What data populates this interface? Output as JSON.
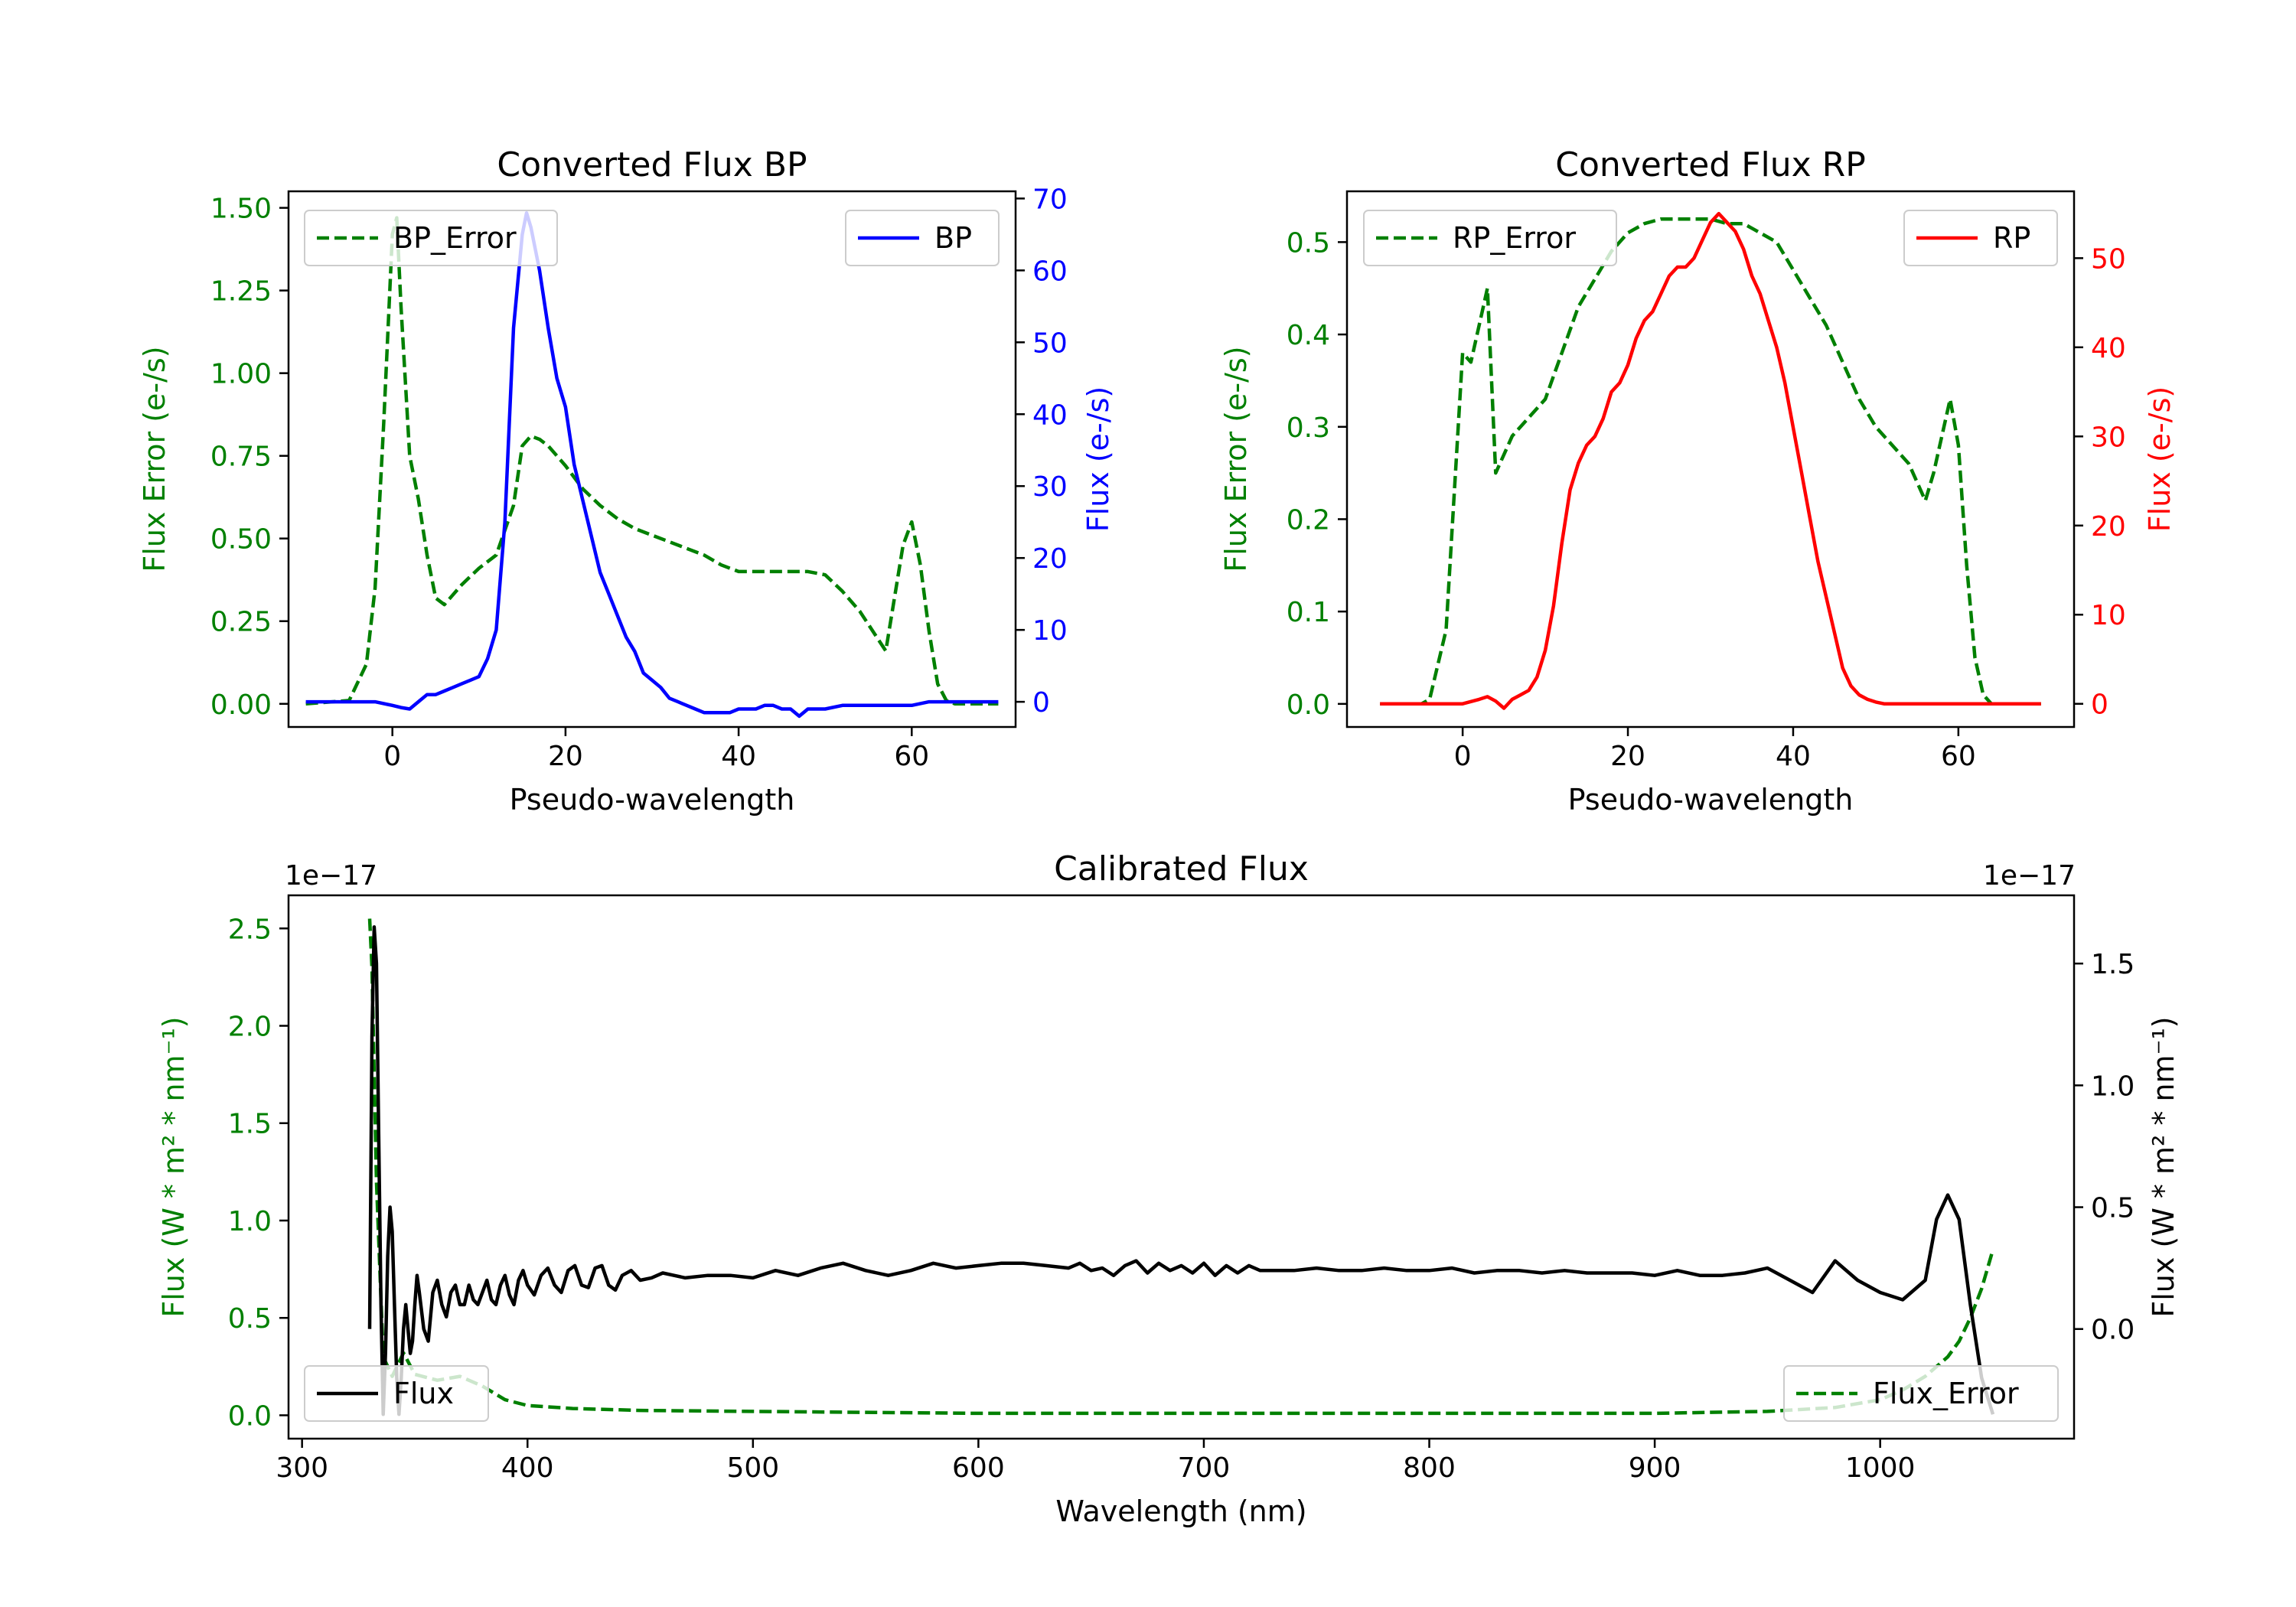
{
  "colors": {
    "error": "#008000",
    "bp": "#0000ff",
    "rp": "#ff0000",
    "flux": "#000000"
  },
  "chart_data": [
    {
      "id": "bp",
      "type": "line",
      "title": "Converted Flux BP",
      "xlabel": "Pseudo-wavelength",
      "ylabel_left": "Flux Error (e-/s)",
      "ylabel_right": "Flux (e-/s)",
      "xlim": [
        -12,
        72
      ],
      "ylim_left": [
        -0.07,
        1.55
      ],
      "ylim_right": [
        -3.5,
        71
      ],
      "xticks": [
        0,
        20,
        40,
        60
      ],
      "xtick_labels": [
        "0",
        "20",
        "40",
        "60"
      ],
      "yticks_left": [
        0,
        0.25,
        0.5,
        0.75,
        1.0,
        1.25,
        1.5
      ],
      "ytick_labels_left": [
        "0.00",
        "0.25",
        "0.50",
        "0.75",
        "1.00",
        "1.25",
        "1.50"
      ],
      "yticks_right": [
        0,
        10,
        20,
        30,
        40,
        50,
        60,
        70
      ],
      "ytick_labels_right": [
        "0",
        "10",
        "20",
        "30",
        "40",
        "50",
        "60",
        "70"
      ],
      "legend_left": {
        "label": "BP_Error",
        "position": "upper left"
      },
      "legend_right": {
        "label": "BP",
        "position": "upper right"
      },
      "series": [
        {
          "name": "BP_Error",
          "axis": "left",
          "color": "#008000",
          "style": "dashed",
          "x": [
            -10,
            -5,
            -3,
            -2,
            -1,
            0,
            0.5,
            1,
            2,
            3,
            4,
            5,
            6,
            7,
            8,
            10,
            12,
            14,
            15,
            16,
            17,
            18,
            20,
            22,
            24,
            26,
            28,
            30,
            32,
            34,
            36,
            38,
            40,
            42,
            44,
            46,
            48,
            50,
            52,
            54,
            56,
            57,
            58,
            59,
            60,
            61,
            62,
            63,
            64,
            65,
            66,
            70
          ],
          "y": [
            0,
            0.01,
            0.12,
            0.35,
            0.85,
            1.42,
            1.47,
            1.2,
            0.75,
            0.62,
            0.45,
            0.32,
            0.3,
            0.33,
            0.36,
            0.41,
            0.45,
            0.6,
            0.78,
            0.81,
            0.8,
            0.78,
            0.72,
            0.65,
            0.6,
            0.56,
            0.53,
            0.51,
            0.49,
            0.47,
            0.45,
            0.42,
            0.4,
            0.4,
            0.4,
            0.4,
            0.4,
            0.39,
            0.34,
            0.28,
            0.2,
            0.16,
            0.32,
            0.48,
            0.55,
            0.42,
            0.22,
            0.06,
            0.01,
            0,
            0,
            0
          ]
        },
        {
          "name": "BP",
          "axis": "right",
          "color": "#0000ff",
          "style": "solid",
          "x": [
            -10,
            -5,
            -2,
            0,
            1,
            2,
            3,
            4,
            5,
            6,
            7,
            8,
            9,
            10,
            11,
            12,
            13,
            14,
            15,
            15.5,
            16,
            17,
            18,
            19,
            20,
            21,
            22,
            23,
            24,
            25,
            26,
            27,
            28,
            29,
            30,
            31,
            32,
            33,
            34,
            35,
            36,
            37,
            38,
            39,
            40,
            41,
            42,
            43,
            44,
            45,
            46,
            47,
            48,
            49,
            50,
            52,
            54,
            56,
            58,
            60,
            62,
            64,
            66,
            68,
            70
          ],
          "y": [
            0,
            0,
            0,
            -0.5,
            -0.8,
            -1,
            0,
            1,
            1,
            1.5,
            2,
            2.5,
            3,
            3.5,
            6,
            10,
            25,
            52,
            65,
            68,
            66,
            60,
            52,
            45,
            41,
            33,
            28,
            23,
            18,
            15,
            12,
            9,
            7,
            4,
            3,
            2,
            0.5,
            0,
            -0.5,
            -1,
            -1.5,
            -1.5,
            -1.5,
            -1.5,
            -1,
            -1,
            -1,
            -0.5,
            -0.5,
            -1,
            -1,
            -2,
            -1,
            -1,
            -1,
            -0.5,
            -0.5,
            -0.5,
            -0.5,
            -0.5,
            0,
            0,
            0,
            0,
            0
          ]
        }
      ]
    },
    {
      "id": "rp",
      "type": "line",
      "title": "Converted Flux RP",
      "xlabel": "Pseudo-wavelength",
      "ylabel_left": "Flux Error (e-/s)",
      "ylabel_right": "Flux (e-/s)",
      "xlim": [
        -14,
        74
      ],
      "ylim_left": [
        -0.025,
        0.555
      ],
      "ylim_right": [
        -2.6,
        57.5
      ],
      "xticks": [
        0,
        20,
        40,
        60
      ],
      "xtick_labels": [
        "0",
        "20",
        "40",
        "60"
      ],
      "yticks_left": [
        0,
        0.1,
        0.2,
        0.3,
        0.4,
        0.5
      ],
      "ytick_labels_left": [
        "0.0",
        "0.1",
        "0.2",
        "0.3",
        "0.4",
        "0.5"
      ],
      "yticks_right": [
        0,
        10,
        20,
        30,
        40,
        50
      ],
      "ytick_labels_right": [
        "0",
        "10",
        "20",
        "30",
        "40",
        "50"
      ],
      "legend_left": {
        "label": "RP_Error",
        "position": "upper left"
      },
      "legend_right": {
        "label": "RP",
        "position": "upper right"
      },
      "series": [
        {
          "name": "RP_Error",
          "axis": "left",
          "color": "#008000",
          "style": "dashed",
          "x": [
            -10,
            -5,
            -4,
            -2,
            -1,
            0,
            1,
            2,
            3,
            4,
            5,
            6,
            8,
            10,
            12,
            14,
            16,
            18,
            20,
            22,
            24,
            26,
            28,
            30,
            32,
            34,
            36,
            38,
            40,
            42,
            44,
            46,
            48,
            50,
            52,
            54,
            56,
            57,
            58,
            59,
            60,
            61,
            62,
            63,
            64,
            66,
            70
          ],
          "y": [
            0,
            0,
            0.005,
            0.08,
            0.23,
            0.38,
            0.37,
            0.41,
            0.45,
            0.25,
            0.27,
            0.29,
            0.31,
            0.33,
            0.38,
            0.43,
            0.46,
            0.49,
            0.51,
            0.52,
            0.525,
            0.525,
            0.525,
            0.525,
            0.52,
            0.52,
            0.51,
            0.5,
            0.47,
            0.44,
            0.41,
            0.37,
            0.33,
            0.3,
            0.28,
            0.26,
            0.22,
            0.25,
            0.29,
            0.33,
            0.28,
            0.15,
            0.05,
            0.01,
            0,
            0,
            0
          ]
        },
        {
          "name": "RP",
          "axis": "right",
          "color": "#ff0000",
          "style": "solid",
          "x": [
            -10,
            -5,
            0,
            2,
            3,
            4,
            5,
            6,
            7,
            8,
            9,
            10,
            11,
            12,
            13,
            14,
            15,
            16,
            17,
            18,
            19,
            20,
            21,
            22,
            23,
            24,
            25,
            26,
            27,
            28,
            29,
            30,
            31,
            32,
            33,
            34,
            35,
            36,
            37,
            38,
            39,
            40,
            41,
            42,
            43,
            44,
            45,
            46,
            47,
            48,
            49,
            50,
            51,
            52,
            54,
            56,
            58,
            60,
            62,
            64,
            66,
            70
          ],
          "y": [
            0,
            0,
            0,
            0.5,
            0.8,
            0.3,
            -0.5,
            0.5,
            1,
            1.5,
            3,
            6,
            11,
            18,
            24,
            27,
            29,
            30,
            32,
            35,
            36,
            38,
            41,
            43,
            44,
            46,
            48,
            49,
            49,
            50,
            52,
            54,
            55,
            54,
            53,
            51,
            48,
            46,
            43,
            40,
            36,
            31,
            26,
            21,
            16,
            12,
            8,
            4,
            2,
            1,
            0.5,
            0.2,
            0,
            0,
            0,
            0,
            0,
            0,
            0,
            0,
            0,
            0
          ]
        }
      ]
    },
    {
      "id": "calibrated",
      "type": "line",
      "title": "Calibrated Flux",
      "xlabel": "Wavelength (nm)",
      "ylabel_left": "Flux (W * m² * nm⁻¹)",
      "ylabel_right": "Flux (W * m² * nm⁻¹)",
      "offset_left": "1e−17",
      "offset_right": "1e−17",
      "xlim": [
        294,
        1086
      ],
      "ylim_left": [
        -0.12,
        2.67
      ],
      "ylim_right": [
        -0.45,
        1.78
      ],
      "xticks": [
        300,
        400,
        500,
        600,
        700,
        800,
        900,
        1000
      ],
      "xtick_labels": [
        "300",
        "400",
        "500",
        "600",
        "700",
        "800",
        "900",
        "1000"
      ],
      "yticks_left": [
        0,
        0.5,
        1.0,
        1.5,
        2.0,
        2.5
      ],
      "ytick_labels_left": [
        "0.0",
        "0.5",
        "1.0",
        "1.5",
        "2.0",
        "2.5"
      ],
      "yticks_right": [
        0,
        0.5,
        1.0,
        1.5
      ],
      "ytick_labels_right": [
        "0.0",
        "0.5",
        "1.0",
        "1.5"
      ],
      "legend_left": {
        "label": "Flux",
        "position": "lower left"
      },
      "legend_right": {
        "label": "Flux_Error",
        "position": "lower right"
      },
      "series": [
        {
          "name": "Flux_Error",
          "axis": "left",
          "color": "#008000",
          "style": "dashed",
          "x": [
            330,
            331,
            333,
            336,
            340,
            345,
            350,
            360,
            370,
            380,
            390,
            400,
            420,
            450,
            500,
            600,
            640,
            700,
            800,
            900,
            950,
            980,
            1000,
            1010,
            1020,
            1030,
            1035,
            1040,
            1045,
            1050
          ],
          "y": [
            2.55,
            2.3,
            1.2,
            0.3,
            0.2,
            0.32,
            0.21,
            0.18,
            0.2,
            0.15,
            0.08,
            0.05,
            0.035,
            0.025,
            0.02,
            0.01,
            0.01,
            0.01,
            0.01,
            0.01,
            0.02,
            0.04,
            0.08,
            0.13,
            0.2,
            0.3,
            0.38,
            0.5,
            0.65,
            0.85
          ]
        },
        {
          "name": "Flux",
          "axis": "right",
          "color": "#000000",
          "style": "solid",
          "x": [
            330,
            331,
            332,
            333,
            334,
            335,
            336,
            337,
            338,
            339,
            340,
            341,
            342,
            343,
            344,
            345,
            346,
            347,
            348,
            349,
            350,
            351,
            352,
            354,
            356,
            358,
            360,
            362,
            364,
            366,
            368,
            370,
            372,
            374,
            376,
            378,
            380,
            382,
            384,
            386,
            388,
            390,
            392,
            394,
            396,
            398,
            400,
            403,
            406,
            409,
            412,
            415,
            418,
            421,
            424,
            427,
            430,
            433,
            436,
            439,
            442,
            446,
            450,
            455,
            460,
            465,
            470,
            480,
            490,
            500,
            510,
            520,
            530,
            540,
            550,
            560,
            570,
            580,
            590,
            600,
            610,
            620,
            630,
            640,
            645,
            650,
            655,
            660,
            665,
            670,
            675,
            680,
            685,
            690,
            695,
            700,
            705,
            710,
            715,
            720,
            725,
            730,
            740,
            750,
            760,
            770,
            780,
            790,
            800,
            810,
            820,
            830,
            840,
            850,
            860,
            870,
            880,
            890,
            900,
            910,
            920,
            930,
            940,
            950,
            960,
            970,
            980,
            990,
            1000,
            1010,
            1020,
            1025,
            1030,
            1035,
            1040,
            1045,
            1050
          ],
          "y": [
            0,
            1.2,
            1.65,
            1.5,
            0.8,
            0.1,
            -0.35,
            -0.1,
            0.3,
            0.5,
            0.4,
            0.1,
            -0.2,
            -0.35,
            -0.2,
            0,
            0.1,
            0.0,
            -0.1,
            -0.05,
            0.1,
            0.22,
            0.15,
            0.0,
            -0.05,
            0.15,
            0.2,
            0.1,
            0.05,
            0.15,
            0.18,
            0.1,
            0.1,
            0.18,
            0.12,
            0.1,
            0.15,
            0.2,
            0.12,
            0.1,
            0.18,
            0.22,
            0.14,
            0.1,
            0.2,
            0.24,
            0.18,
            0.14,
            0.22,
            0.25,
            0.18,
            0.15,
            0.24,
            0.26,
            0.18,
            0.17,
            0.25,
            0.26,
            0.18,
            0.16,
            0.22,
            0.24,
            0.2,
            0.21,
            0.23,
            0.22,
            0.21,
            0.22,
            0.22,
            0.21,
            0.24,
            0.22,
            0.25,
            0.27,
            0.24,
            0.22,
            0.24,
            0.27,
            0.25,
            0.26,
            0.27,
            0.27,
            0.26,
            0.25,
            0.27,
            0.24,
            0.25,
            0.22,
            0.26,
            0.28,
            0.23,
            0.27,
            0.24,
            0.26,
            0.23,
            0.27,
            0.22,
            0.26,
            0.23,
            0.26,
            0.24,
            0.24,
            0.24,
            0.25,
            0.24,
            0.24,
            0.25,
            0.24,
            0.24,
            0.25,
            0.23,
            0.24,
            0.24,
            0.23,
            0.24,
            0.23,
            0.23,
            0.23,
            0.22,
            0.24,
            0.22,
            0.22,
            0.23,
            0.25,
            0.2,
            0.15,
            0.28,
            0.2,
            0.15,
            0.12,
            0.2,
            0.45,
            0.55,
            0.45,
            0.1,
            -0.2,
            -0.35
          ]
        }
      ]
    }
  ]
}
